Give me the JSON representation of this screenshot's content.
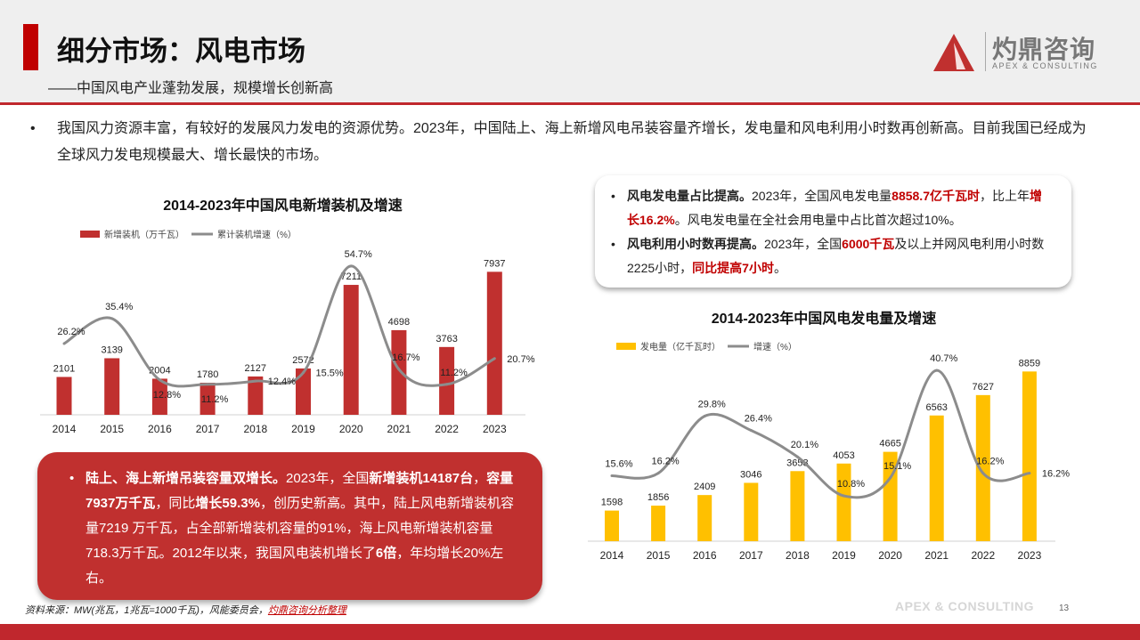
{
  "header": {
    "title": "细分市场：风电市场",
    "subtitle": "——中国风电产业蓬勃发展，规模增长创新高",
    "logo_cn": "灼鼎咨询",
    "logo_en": "APEX & CONSULTING"
  },
  "intro": {
    "bullet": "•",
    "text": "我国风力资源丰富，有较好的发展风力发电的资源优势。2023年，中国陆上、海上新增风电吊装容量齐增长，发电量和风电利用小时数再创新高。目前我国已经成为全球风力发电规模最大、增长最快的市场。"
  },
  "callout": {
    "b1": {
      "bold": "风电发电量占比提高。",
      "t1": "2023年，全国风电发电量",
      "h1": "8858.7亿千瓦时",
      "t2": "，比上年",
      "h2": "增长16.2%",
      "t3": "。风电发电量在全社会用电量中占比首次超过10%。"
    },
    "b2": {
      "bold": "风电利用小时数再提高。",
      "t1": "2023年，全国",
      "h1": "6000千瓦",
      "t2": "及以上并网风电利用小时数2225小时，",
      "h2": "同比提高7小时",
      "t3": "。"
    }
  },
  "redbox": {
    "bold1": "陆上、海上新增吊装容量双增长。",
    "t1": "2023年，全国",
    "bold2": "新增装机14187台",
    "t2": "，",
    "bold3": "容量7937万千瓦",
    "t3": "，同比",
    "bold4": "增长59.3%",
    "t4": "，创历史新高。其中，陆上风电新增装机容量7219 万千瓦，占全部新增装机容量的91%，海上风电新增装机容量 718.3万千瓦。2012年以来，我国风电装机增长了",
    "bold5": "6倍",
    "t5": "，年均增长20%左右。"
  },
  "footer": {
    "source_prefix": "资料来源：MW(兆瓦，1兆瓦=1000千瓦)，风能委员会，",
    "source_link": "灼鼎咨询分析整理",
    "watermark": "APEX & CONSULTING",
    "page": "13"
  },
  "colors": {
    "brand_red": "#c0272d",
    "bar1": "#c0302f",
    "bar2": "#ffc000",
    "line": "#8c8c8c"
  },
  "chart_data": [
    {
      "type": "bar+line",
      "title": "2014-2023年中国风电新增装机及增速",
      "categories": [
        "2014",
        "2015",
        "2016",
        "2017",
        "2018",
        "2019",
        "2020",
        "2021",
        "2022",
        "2023"
      ],
      "series": [
        {
          "name": "新增装机（万千瓦）",
          "type": "bar",
          "axis": "left",
          "values": [
            2101,
            3139,
            2004,
            1780,
            2127,
            2572,
            7211,
            4698,
            3763,
            7937
          ],
          "labels": [
            "2101",
            "3139",
            "2004",
            "1780",
            "2127",
            "2572",
            "7211",
            "4698",
            "3763",
            "7937"
          ]
        },
        {
          "name": "累计装机增速（%）",
          "type": "line",
          "axis": "right",
          "smooth": true,
          "values": [
            26.2,
            35.4,
            12.8,
            11.2,
            12.4,
            15.5,
            54.7,
            16.7,
            11.2,
            20.7
          ],
          "labels": [
            "26.2%",
            "35.4%",
            "12.8%",
            "11.2%",
            "12.4%",
            "15.5%",
            "54.7%",
            "16.7%",
            "11.2%",
            "20.7%"
          ]
        }
      ],
      "ylim": [
        0,
        8300
      ],
      "y2lim": [
        0,
        55
      ],
      "grid": false,
      "legend": "top-left"
    },
    {
      "type": "bar+line",
      "title": "2014-2023年中国风电发电量及增速",
      "categories": [
        "2014",
        "2015",
        "2016",
        "2017",
        "2018",
        "2019",
        "2020",
        "2021",
        "2022",
        "2023"
      ],
      "series": [
        {
          "name": "发电量（亿千瓦时）",
          "type": "bar",
          "axis": "left",
          "values": [
            1598,
            1856,
            2409,
            3046,
            3658,
            4053,
            4665,
            6563,
            7627,
            8859
          ],
          "labels": [
            "1598",
            "1856",
            "2409",
            "3046",
            "3658",
            "4053",
            "4665",
            "6563",
            "7627",
            "8859"
          ]
        },
        {
          "name": "增速（%）",
          "type": "line",
          "axis": "right",
          "smooth": true,
          "values": [
            15.6,
            16.2,
            29.8,
            26.4,
            20.1,
            10.8,
            15.1,
            40.7,
            16.2,
            16.2
          ],
          "labels": [
            "15.6%",
            "16.2%",
            "29.8%",
            "26.4%",
            "20.1%",
            "10.8%",
            "15.1%",
            "40.7%",
            "16.2%",
            "16.2%"
          ]
        }
      ],
      "ylim": [
        0,
        9200
      ],
      "y2lim": [
        0,
        42
      ],
      "grid": false,
      "legend": "top-left"
    }
  ]
}
